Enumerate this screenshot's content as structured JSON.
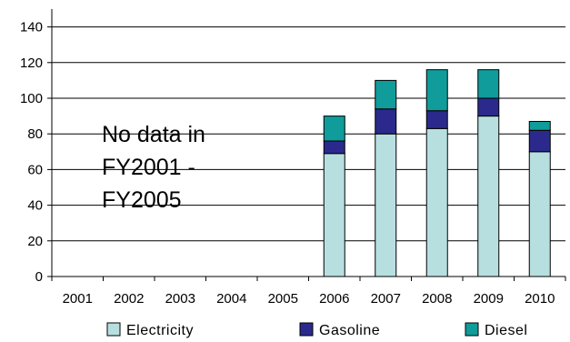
{
  "chart_data": {
    "type": "bar",
    "stacked": true,
    "categories": [
      "2001",
      "2002",
      "2003",
      "2004",
      "2005",
      "2006",
      "2007",
      "2008",
      "2009",
      "2010"
    ],
    "series": [
      {
        "name": "Electricity",
        "color": "#b7dfe0",
        "values": [
          null,
          null,
          null,
          null,
          null,
          69,
          80,
          83,
          90,
          70
        ]
      },
      {
        "name": "Gasoline",
        "color": "#2b2a8c",
        "values": [
          null,
          null,
          null,
          null,
          null,
          7,
          14,
          10,
          10,
          12
        ]
      },
      {
        "name": "Diesel",
        "color": "#0f9c9a",
        "values": [
          null,
          null,
          null,
          null,
          null,
          14,
          16,
          23,
          16,
          5
        ]
      }
    ],
    "y_ticks": [
      "0",
      "20",
      "40",
      "60",
      "80",
      "100",
      "120",
      "140"
    ],
    "ylim": [
      0,
      150
    ],
    "grid": "horizontal",
    "legend_position": "bottom",
    "annotation_lines": [
      "No data in",
      "FY2001 -",
      "FY2005"
    ]
  }
}
